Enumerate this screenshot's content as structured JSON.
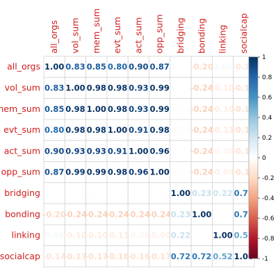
{
  "chart_data": {
    "type": "heatmap",
    "title": "",
    "variables": [
      "all_orgs",
      "vol_sum",
      "mem_sum",
      "evt_sum",
      "act_sum",
      "opp_sum",
      "bridging",
      "bonding",
      "linking",
      "socialcap"
    ],
    "values": [
      [
        1.0,
        0.83,
        0.85,
        0.8,
        0.9,
        0.87,
        0.0,
        -0.2,
        0.05,
        -0.14
      ],
      [
        0.83,
        1.0,
        0.98,
        0.98,
        0.93,
        0.99,
        0.01,
        -0.24,
        -0.1,
        -0.17
      ],
      [
        0.85,
        0.98,
        1.0,
        0.98,
        0.93,
        0.99,
        0.01,
        -0.24,
        -0.1,
        -0.17
      ],
      [
        0.8,
        0.98,
        0.98,
        1.0,
        0.91,
        0.98,
        0.01,
        -0.24,
        -0.11,
        -0.18
      ],
      [
        0.9,
        0.93,
        0.93,
        0.91,
        1.0,
        0.96,
        0.0,
        -0.24,
        -0.06,
        -0.16
      ],
      [
        0.87,
        0.99,
        0.99,
        0.98,
        0.96,
        1.0,
        0.01,
        -0.24,
        -0.09,
        -0.17
      ],
      [
        0.0,
        0.01,
        0.01,
        0.01,
        0.0,
        0.01,
        1.0,
        0.23,
        0.22,
        0.72
      ],
      [
        -0.2,
        -0.24,
        -0.24,
        -0.24,
        -0.24,
        -0.24,
        0.23,
        1.0,
        0.0,
        0.72
      ],
      [
        0.05,
        -0.1,
        -0.1,
        -0.11,
        -0.06,
        -0.09,
        0.22,
        0.0,
        1.0,
        0.52
      ],
      [
        -0.14,
        -0.17,
        -0.17,
        -0.18,
        -0.16,
        -0.17,
        0.72,
        0.72,
        0.52,
        1.0
      ]
    ],
    "color_scale": {
      "min": -1,
      "max": 1,
      "ticks": [
        "1",
        "0.8",
        "0.6",
        "0.4",
        "0.2",
        "0",
        "-0.2",
        "-0.4",
        "-0.6",
        "-0.8",
        "-1"
      ],
      "low_color": "#67001f",
      "mid_color": "#ffffff",
      "high_color": "#053061"
    },
    "label_color": "#d01c1c",
    "grid": true,
    "legend_position": "right"
  }
}
